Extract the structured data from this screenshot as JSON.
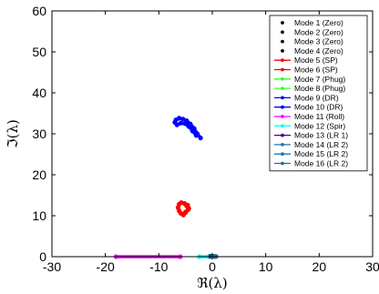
{
  "chart_data": {
    "type": "scatter",
    "title": "",
    "xlabel": "ℜ(λ)",
    "ylabel": "ℑ(λ)",
    "xlim": [
      -30,
      30
    ],
    "ylim": [
      0,
      60
    ],
    "x_ticks": [
      -30,
      -20,
      -10,
      0,
      10,
      20,
      30
    ],
    "y_ticks": [
      0,
      10,
      20,
      30,
      40,
      50,
      60
    ],
    "grid": false,
    "legend_position": "top-right",
    "series": [
      {
        "name": "Mode 1 (Zero)",
        "color": "#000000",
        "marker": "dot",
        "line": false,
        "points": [
          [
            0,
            0
          ]
        ]
      },
      {
        "name": "Mode 2 (Zero)",
        "color": "#000000",
        "marker": "dot",
        "line": false,
        "points": [
          [
            0,
            0
          ]
        ]
      },
      {
        "name": "Mode 3 (Zero)",
        "color": "#000000",
        "marker": "dot",
        "line": false,
        "points": [
          [
            0,
            0
          ]
        ]
      },
      {
        "name": "Mode 4 (Zero)",
        "color": "#000000",
        "marker": "dot",
        "line": false,
        "points": [
          [
            0,
            0
          ]
        ]
      },
      {
        "name": "Mode 5 (SP)",
        "color": "#ff0000",
        "marker": "dot",
        "line": true,
        "points": [
          [
            -6.2,
            12.8
          ],
          [
            -5.8,
            13.2
          ],
          [
            -5.2,
            13.0
          ],
          [
            -4.8,
            12.4
          ],
          [
            -4.5,
            11.5
          ],
          [
            -5.0,
            10.8
          ],
          [
            -5.4,
            10.2
          ]
        ]
      },
      {
        "name": "Mode 6 (SP)",
        "color": "#ff0000",
        "marker": "dot",
        "line": true,
        "points": [
          [
            -6.4,
            12.0
          ],
          [
            -6.2,
            11.2
          ],
          [
            -5.9,
            10.6
          ],
          [
            -5.5,
            10.3
          ],
          [
            -5.0,
            10.9
          ],
          [
            -4.4,
            11.8
          ],
          [
            -4.6,
            12.6
          ]
        ]
      },
      {
        "name": "Mode 7 (Phug)",
        "color": "#33ff33",
        "marker": "dot",
        "line": true,
        "points": [
          [
            -0.6,
            0.1
          ],
          [
            -0.3,
            0.1
          ]
        ]
      },
      {
        "name": "Mode 8 (Phug)",
        "color": "#33ff33",
        "marker": "dot",
        "line": true,
        "points": [
          [
            -0.5,
            0.15
          ],
          [
            -0.2,
            0.15
          ]
        ]
      },
      {
        "name": "Mode 9 (DR)",
        "color": "#0000ff",
        "marker": "dot",
        "line": true,
        "points": [
          [
            -6.8,
            33.4
          ],
          [
            -6.2,
            33.8
          ],
          [
            -5.5,
            33.6
          ],
          [
            -4.8,
            33.2
          ],
          [
            -4.1,
            32.4
          ],
          [
            -3.4,
            31.3
          ],
          [
            -2.8,
            30.0
          ],
          [
            -2.2,
            29.0
          ]
        ]
      },
      {
        "name": "Mode 10 (DR)",
        "color": "#0000ff",
        "marker": "dot",
        "line": true,
        "points": [
          [
            -7.0,
            32.8
          ],
          [
            -6.6,
            32.2
          ],
          [
            -5.9,
            32.6
          ],
          [
            -5.1,
            32.5
          ],
          [
            -4.4,
            31.8
          ],
          [
            -3.7,
            30.7
          ],
          [
            -3.0,
            29.6
          ]
        ]
      },
      {
        "name": "Mode 11 (Roll)",
        "color": "#ff00ff",
        "marker": "dot",
        "line": true,
        "points": [
          [
            -18.0,
            0
          ],
          [
            -6.0,
            0
          ]
        ]
      },
      {
        "name": "Mode 12 (Spir)",
        "color": "#00ffff",
        "marker": "dot",
        "line": true,
        "points": [
          [
            -2.4,
            0
          ],
          [
            -0.6,
            0
          ]
        ]
      },
      {
        "name": "Mode 13 (LR 1)",
        "color": "#4b0082",
        "marker": "dot",
        "line": true,
        "points": [
          [
            -0.3,
            0.1
          ],
          [
            0.2,
            0.1
          ]
        ]
      },
      {
        "name": "Mode 14 (LR 2)",
        "color": "#1f77b4",
        "marker": "dot",
        "line": true,
        "points": [
          [
            0.1,
            0.05
          ],
          [
            0.5,
            0.05
          ]
        ]
      },
      {
        "name": "Mode 15 (LR 2)",
        "color": "#1f77b4",
        "marker": "dot",
        "line": true,
        "points": [
          [
            0.2,
            0.05
          ],
          [
            0.6,
            0.05
          ]
        ]
      },
      {
        "name": "Mode 16 (LR 2)",
        "color": "#2a6f97",
        "marker": "dot",
        "line": true,
        "points": [
          [
            0.3,
            0.05
          ],
          [
            0.7,
            0.05
          ]
        ]
      }
    ]
  }
}
